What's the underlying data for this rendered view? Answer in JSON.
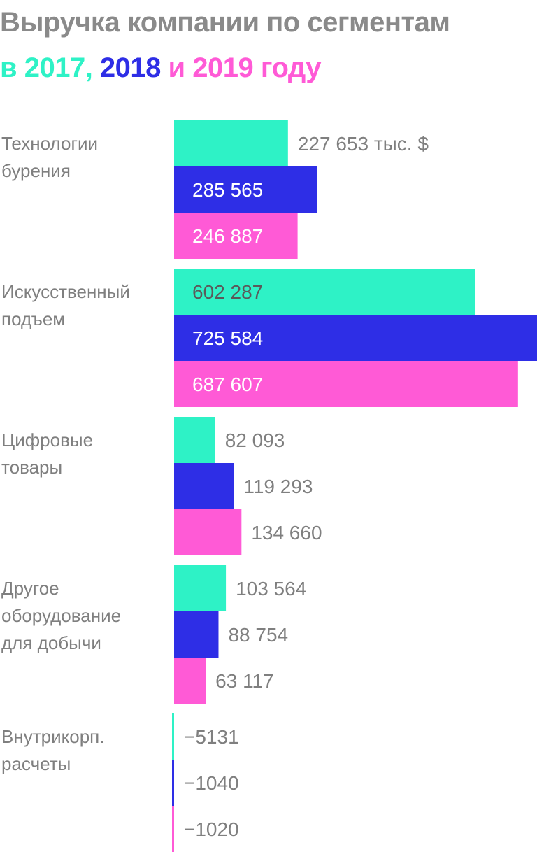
{
  "title": {
    "line1": "Выручка компании по сегментам",
    "prefix": "в ",
    "year_2017": "2017",
    "sep1": ", ",
    "year_2018": "2018",
    "sep2": " и ",
    "year_2019": "2019",
    "suffix": " году"
  },
  "colors": {
    "title_gray": "#8a8a8a",
    "label_gray": "#7f7f7f",
    "2017": "#2ef2c6",
    "2018": "#2e2ee6",
    "2019": "#ff5ad6"
  },
  "chart_data": {
    "type": "bar",
    "orientation": "horizontal",
    "unit": "тыс. $",
    "categories": [
      "Технологии бурения",
      "Искусственный подъем",
      "Цифровые товары",
      "Другое оборудование для добычи",
      "Внутрикорп. расчеты"
    ],
    "category_lines": [
      [
        "Технологии",
        "бурения"
      ],
      [
        "Искусственный",
        "подъем"
      ],
      [
        "Цифровые",
        "товары"
      ],
      [
        "Другое",
        "оборудование",
        "для добычи"
      ],
      [
        "Внутрикорп.",
        "расчеты"
      ]
    ],
    "series": [
      {
        "name": "2017",
        "values": [
          227653,
          602287,
          82093,
          103564,
          -5131
        ],
        "labels": [
          "227 653 тыс. $",
          "602 287",
          "82 093",
          "103 564",
          "−5131"
        ]
      },
      {
        "name": "2018",
        "values": [
          285565,
          725584,
          119293,
          88754,
          -1040
        ],
        "labels": [
          "285 565",
          "725 584",
          "119 293",
          "88 754",
          "−1040"
        ]
      },
      {
        "name": "2019",
        "values": [
          246887,
          687607,
          134660,
          63117,
          -1020
        ],
        "labels": [
          "246 887",
          "687 607",
          "134 660",
          "63 117",
          "−1020"
        ]
      }
    ]
  }
}
